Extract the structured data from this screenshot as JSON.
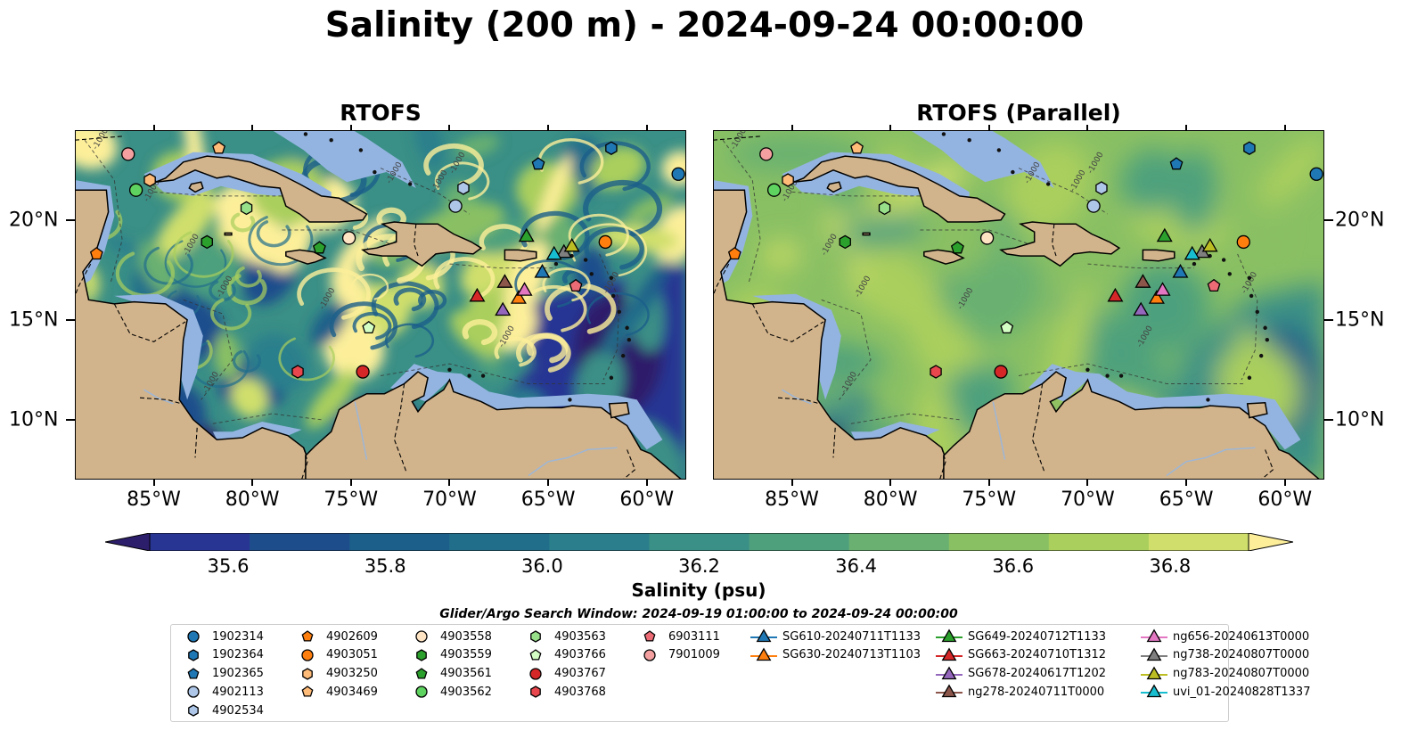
{
  "title": "Salinity (200 m) - 2024-09-24 00:00:00",
  "panels": [
    {
      "title": "RTOFS"
    },
    {
      "title": "RTOFS (Parallel)"
    }
  ],
  "colorbar": {
    "label": "Salinity (psu)",
    "ticks": [
      "35.6",
      "35.8",
      "36.0",
      "36.2",
      "36.4",
      "36.6",
      "36.8"
    ],
    "colors": [
      "#2d1e6b",
      "#283593",
      "#1e4d8c",
      "#1c5f8a",
      "#216e8b",
      "#2b7f8c",
      "#3a8f86",
      "#4ea07d",
      "#69b071",
      "#8ac064",
      "#aacf5d",
      "#d0df6c",
      "#fdef9a"
    ]
  },
  "chart_data": [
    {
      "type": "map",
      "title": "RTOFS",
      "variable": "Salinity (psu)",
      "depth": "200 m",
      "lon_range": [
        -89,
        -58
      ],
      "lat_range": [
        7,
        24.5
      ],
      "lon_ticks": [
        "85°W",
        "80°W",
        "75°W",
        "70°W",
        "65°W",
        "60°W"
      ],
      "lat_ticks": [
        "10°N",
        "15°N",
        "20°N"
      ],
      "contour_labels": "-1000",
      "colorscale_range": [
        35.5,
        36.9
      ]
    },
    {
      "type": "map",
      "title": "RTOFS (Parallel)",
      "variable": "Salinity (psu)",
      "depth": "200 m",
      "lon_range": [
        -89,
        -58
      ],
      "lat_range": [
        7,
        24.5
      ],
      "lon_ticks": [
        "85°W",
        "80°W",
        "75°W",
        "70°W",
        "65°W",
        "60°W"
      ],
      "lat_ticks": [
        "10°N",
        "15°N",
        "20°N"
      ],
      "contour_labels": "-1000",
      "colorscale_range": [
        35.5,
        36.9
      ]
    }
  ],
  "legend": {
    "title": "Glider/Argo Search Window: 2024-09-19 01:00:00 to 2024-09-24 00:00:00",
    "items": [
      {
        "label": "1902314",
        "marker": "circle",
        "color": "#1f77b4",
        "lon": -58.4,
        "lat": 22.3
      },
      {
        "label": "1902364",
        "marker": "hexagon",
        "color": "#1f77b4",
        "lon": -61.8,
        "lat": 23.6
      },
      {
        "label": "1902365",
        "marker": "pentagon",
        "color": "#1f77b4",
        "lon": -65.5,
        "lat": 22.8
      },
      {
        "label": "4902113",
        "marker": "circle",
        "color": "#aec7e8",
        "lon": -69.7,
        "lat": 20.7
      },
      {
        "label": "4902534",
        "marker": "hexagon",
        "color": "#aec7e8",
        "lon": -69.3,
        "lat": 21.6
      },
      {
        "label": "4902609",
        "marker": "pentagon",
        "color": "#ff7f0e",
        "lon": -87.9,
        "lat": 18.3
      },
      {
        "label": "4903051",
        "marker": "circle",
        "color": "#ff7f0e",
        "lon": -62.1,
        "lat": 18.9
      },
      {
        "label": "4903250",
        "marker": "hexagon",
        "color": "#ffbb78",
        "lon": -85.2,
        "lat": 22.0
      },
      {
        "label": "4903469",
        "marker": "pentagon",
        "color": "#ffbb78",
        "lon": -81.7,
        "lat": 23.6
      },
      {
        "label": "4903558",
        "marker": "circle",
        "color": "#ffe4c4",
        "lon": -75.1,
        "lat": 19.1
      },
      {
        "label": "4903559",
        "marker": "hexagon",
        "color": "#2ca02c",
        "lon": -82.3,
        "lat": 18.9
      },
      {
        "label": "4903561",
        "marker": "pentagon",
        "color": "#2ca02c",
        "lon": -76.6,
        "lat": 18.6
      },
      {
        "label": "4903562",
        "marker": "circle",
        "color": "#5fd35f",
        "lon": -85.9,
        "lat": 21.5
      },
      {
        "label": "4903563",
        "marker": "hexagon",
        "color": "#98df8a",
        "lon": -80.3,
        "lat": 20.6
      },
      {
        "label": "4903766",
        "marker": "pentagon",
        "color": "#d4ffc4",
        "lon": -74.1,
        "lat": 14.6
      },
      {
        "label": "4903767",
        "marker": "circle",
        "color": "#d62728",
        "lon": -74.4,
        "lat": 12.4
      },
      {
        "label": "4903768",
        "marker": "hexagon",
        "color": "#e8474d",
        "lon": -77.7,
        "lat": 12.4
      },
      {
        "label": "6903111",
        "marker": "pentagon",
        "color": "#ec6b75",
        "lon": -63.6,
        "lat": 16.7
      },
      {
        "label": "7901009",
        "marker": "circle",
        "color": "#f4a0a0",
        "lon": -86.3,
        "lat": 23.3
      },
      {
        "label": "SG610-20240711T1133",
        "marker": "triangle",
        "color": "#1f77b4",
        "lon": -65.3,
        "lat": 17.4
      },
      {
        "label": "SG630-20240713T1103",
        "marker": "triangle",
        "color": "#ff7f0e",
        "lon": -66.5,
        "lat": 16.1
      },
      {
        "label": "SG649-20240712T1133",
        "marker": "triangle",
        "color": "#2ca02c",
        "lon": -66.1,
        "lat": 19.2
      },
      {
        "label": "SG663-20240710T1312",
        "marker": "triangle",
        "color": "#d62728",
        "lon": -68.6,
        "lat": 16.2
      },
      {
        "label": "SG678-20240617T1202",
        "marker": "triangle",
        "color": "#9467bd",
        "lon": -67.3,
        "lat": 15.5
      },
      {
        "label": "ng278-20240711T0000",
        "marker": "triangle",
        "color": "#8c564b",
        "lon": -67.2,
        "lat": 16.9
      },
      {
        "label": "ng656-20240613T0000",
        "marker": "triangle",
        "color": "#e377c2",
        "lon": -66.2,
        "lat": 16.5
      },
      {
        "label": "ng738-20240807T0000",
        "marker": "triangle",
        "color": "#7f7f7f",
        "lon": -64.2,
        "lat": 18.4
      },
      {
        "label": "ng783-20240807T0000",
        "marker": "triangle",
        "color": "#bcbd22",
        "lon": -63.8,
        "lat": 18.7
      },
      {
        "label": "uvi_01-20240828T1337",
        "marker": "triangle",
        "color": "#17becf",
        "lon": -64.7,
        "lat": 18.3
      }
    ]
  }
}
